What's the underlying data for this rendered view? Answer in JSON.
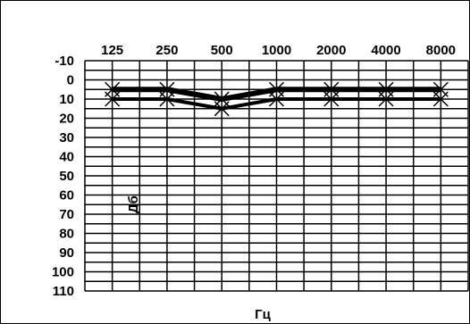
{
  "chart_data": {
    "type": "line",
    "title": "",
    "xlabel": "Гц",
    "ylabel": "Дб",
    "x": [
      "125",
      "250",
      "500",
      "1000",
      "2000",
      "4000",
      "8000"
    ],
    "y_ticks": [
      "-10",
      "0",
      "10",
      "20",
      "30",
      "40",
      "50",
      "60",
      "70",
      "80",
      "90",
      "100",
      "110"
    ],
    "ylim": [
      -10,
      110
    ],
    "y_inverted": true,
    "grid": true,
    "series": [
      {
        "marker": "x-cross",
        "style": "thick",
        "values": [
          5,
          5,
          10,
          5,
          5,
          5,
          5
        ]
      },
      {
        "marker": "x-cross",
        "style": "medium",
        "values": [
          10,
          10,
          15,
          10,
          10,
          10,
          10
        ]
      }
    ],
    "colors": {
      "ink": "#000000",
      "background": "#ffffff"
    }
  }
}
